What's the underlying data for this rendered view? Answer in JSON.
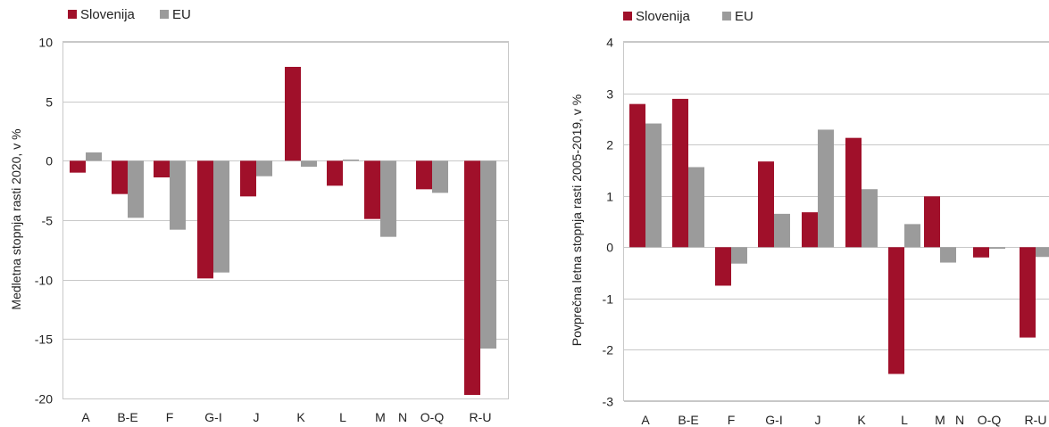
{
  "colors": {
    "slovenija": "#a0102a",
    "eu": "#9b9b9b"
  },
  "chart_data": [
    {
      "type": "bar",
      "xlabel": "",
      "ylabel": "Medletna stopnja rasti 2020, v %",
      "ylim": [
        -20,
        10
      ],
      "yticks": [
        10,
        5,
        0,
        -5,
        -10,
        -15,
        -20
      ],
      "ytick_labels": [
        "10",
        "5",
        "0",
        "-5",
        "-10",
        "-15",
        "-20"
      ],
      "categories": [
        "A",
        "B-E",
        "F",
        "G-I",
        "J",
        "K",
        "L",
        "M",
        "N",
        "O-Q",
        "R-U"
      ],
      "series": [
        {
          "name": "Slovenija",
          "values": [
            -1.0,
            -2.8,
            -1.4,
            -9.9,
            -3.0,
            7.9,
            -2.1,
            -4.9,
            null,
            -2.4,
            -19.7
          ]
        },
        {
          "name": "EU",
          "values": [
            0.7,
            -4.8,
            -5.8,
            -9.4,
            -1.3,
            -0.5,
            0.1,
            -6.4,
            null,
            -2.7,
            -15.8
          ]
        }
      ],
      "legend_position": "top-left",
      "grid": true
    },
    {
      "type": "bar",
      "xlabel": "",
      "ylabel": "Povprečna letna stopnja rasti 2005-2019, v %",
      "ylim": [
        -3,
        4
      ],
      "yticks": [
        4,
        3,
        2,
        1,
        0,
        -1,
        -2,
        -3
      ],
      "ytick_labels": [
        "4",
        "3",
        "2",
        "1",
        "0",
        "-1",
        "-2",
        "-3"
      ],
      "categories": [
        "A",
        "B-E",
        "F",
        "G-I",
        "J",
        "K",
        "L",
        "M",
        "N",
        "O-Q",
        "R-U"
      ],
      "series": [
        {
          "name": "Slovenija",
          "values": [
            2.79,
            2.89,
            -0.75,
            1.67,
            0.68,
            2.13,
            -2.47,
            0.99,
            null,
            -0.2,
            -1.76
          ]
        },
        {
          "name": "EU",
          "values": [
            2.41,
            1.56,
            -0.32,
            0.65,
            2.29,
            1.13,
            0.45,
            -0.3,
            null,
            -0.03,
            -0.19
          ]
        }
      ],
      "legend_position": "top-left",
      "grid": true
    }
  ]
}
